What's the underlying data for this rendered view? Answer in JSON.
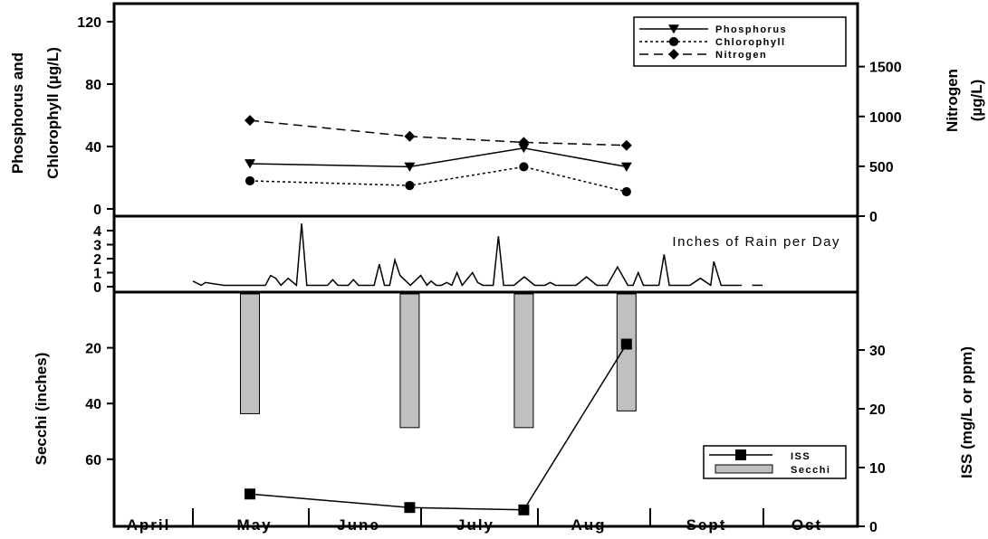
{
  "chart_data": [
    {
      "type": "line",
      "panel": "top",
      "ylabel_lines": [
        "Phosphorus and",
        "Chlorophyll (µg/L)"
      ],
      "ylim": [
        0,
        120
      ],
      "yticks": [
        "0",
        "40",
        "80",
        "120"
      ],
      "y2label_lines": [
        "Nitrogen",
        "(µg/L)"
      ],
      "y2lim": [
        0,
        2000
      ],
      "y2ticks": [
        "0",
        "500",
        "1000",
        "1500"
      ],
      "x_months": [
        1.0,
        2.4,
        3.4,
        4.3
      ],
      "series": [
        {
          "name": "Phosphorus",
          "axis": "left",
          "marker": "triangle-down",
          "dash": "solid",
          "values": [
            29,
            27,
            39,
            27
          ]
        },
        {
          "name": "Chlorophyll",
          "axis": "left",
          "marker": "circle",
          "dash": "dotted",
          "values": [
            18,
            15,
            27,
            11
          ]
        },
        {
          "name": "Nitrogen",
          "axis": "right",
          "marker": "diamond",
          "dash": "dashed",
          "values": [
            960,
            800,
            740,
            710
          ]
        }
      ],
      "legend_position": "top-right"
    },
    {
      "type": "line",
      "panel": "middle",
      "title": "Inches of Rain per Day",
      "ylim": [
        0,
        5
      ],
      "yticks": [
        "0",
        "1",
        "2",
        "3",
        "4"
      ],
      "x_months": [
        0.0,
        0.08,
        0.12,
        0.3,
        0.6,
        0.7,
        0.75,
        0.8,
        0.85,
        0.92,
        1.0,
        1.05,
        1.1,
        1.15,
        1.2,
        1.25,
        1.3,
        1.35,
        1.4,
        1.45,
        1.5,
        1.55,
        1.6,
        1.7,
        1.75,
        1.8,
        1.85,
        1.9,
        1.95,
        2.0,
        2.1,
        2.2,
        2.26,
        2.3,
        2.35,
        2.4,
        2.45,
        2.5,
        2.55,
        2.6,
        2.7,
        2.75,
        2.8,
        2.85,
        2.9,
        2.95,
        3.0,
        3.05,
        3.1,
        3.2,
        3.3,
        3.35,
        3.4,
        3.45,
        3.5,
        3.6,
        3.7,
        3.8,
        3.9,
        4.0,
        4.1,
        4.2,
        4.25,
        4.3,
        4.35,
        4.4,
        4.45,
        4.5,
        4.55,
        4.6,
        4.7,
        4.8,
        4.9,
        5.0,
        5.03,
        5.1,
        5.2,
        5.3,
        5.4,
        5.45,
        5.5
      ],
      "values": [
        0.4,
        0.1,
        0.3,
        0.1,
        0.1,
        0.1,
        0.8,
        0.6,
        0.1,
        0.6,
        0.1,
        4.5,
        0.1,
        0.1,
        0.1,
        0.1,
        0.1,
        0.5,
        0.1,
        0.1,
        0.1,
        0.5,
        0.1,
        0.1,
        0.1,
        1.6,
        0.1,
        0.1,
        1.9,
        0.8,
        0.1,
        0.8,
        0.1,
        0.4,
        0.1,
        0.1,
        0.3,
        0.1,
        1.0,
        0.1,
        1.0,
        0.3,
        0.1,
        0.1,
        0.1,
        3.6,
        0.1,
        0.1,
        0.1,
        0.7,
        0.1,
        0.1,
        0.1,
        0.3,
        0.1,
        0.1,
        0.1,
        0.7,
        0.1,
        0.1,
        1.4,
        0.1,
        0.1,
        1.0,
        0.1,
        0.1,
        0.1,
        0.1,
        2.3,
        0.1,
        0.1,
        0.1,
        0.6,
        0.1,
        1.8,
        0.1,
        0.1,
        0.1,
        0.1,
        0.1,
        0.1
      ],
      "gap_after_month": 5.4
    },
    {
      "type": "bar+line",
      "panel": "bottom",
      "ylabel": "Secchi (inches)",
      "ylim_inverted": [
        0,
        75
      ],
      "yticks": [
        "20",
        "40",
        "60"
      ],
      "y2label": "ISS (mg/L or ppm)",
      "y2lim": [
        0,
        40
      ],
      "y2ticks": [
        "0",
        "10",
        "20",
        "30"
      ],
      "x_months": [
        1.0,
        2.4,
        3.4,
        4.3
      ],
      "series": [
        {
          "name": "Secchi",
          "kind": "bar",
          "color": "#c0c0c0",
          "values": [
            43,
            48,
            48,
            42
          ]
        },
        {
          "name": "ISS",
          "kind": "line",
          "marker": "square",
          "axis": "right",
          "values": [
            5.5,
            3.2,
            2.8,
            31
          ]
        }
      ],
      "legend_position": "bottom-right"
    }
  ],
  "x_axis": {
    "categories": [
      "April",
      "May",
      "June",
      "July",
      "Aug",
      "Sept",
      "Oct"
    ]
  },
  "colors": {
    "line": "#000000",
    "secchi_bar": "#c0c0c0"
  }
}
